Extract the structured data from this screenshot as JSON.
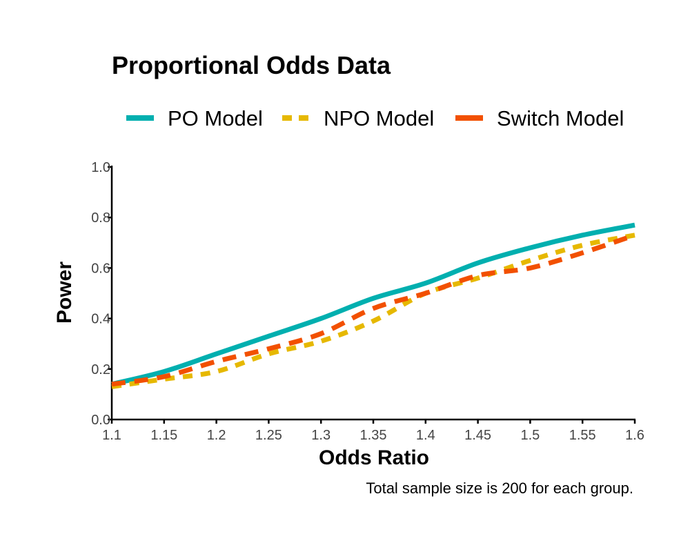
{
  "chart_data": {
    "type": "line",
    "title": "Proportional Odds Data",
    "xlabel": "Odds Ratio",
    "ylabel": "Power",
    "caption": "Total sample size is 200 for each group.",
    "xlim": [
      1.1,
      1.6
    ],
    "ylim": [
      0.0,
      1.0
    ],
    "x_ticks": [
      "1.1",
      "1.15",
      "1.2",
      "1.25",
      "1.3",
      "1.35",
      "1.4",
      "1.45",
      "1.5",
      "1.55",
      "1.6"
    ],
    "y_ticks": [
      "0.0",
      "0.2",
      "0.4",
      "0.6",
      "0.8",
      "1.0"
    ],
    "x": [
      1.1,
      1.15,
      1.2,
      1.25,
      1.3,
      1.35,
      1.4,
      1.45,
      1.5,
      1.55,
      1.6
    ],
    "legend_position": "top",
    "grid": false,
    "series": [
      {
        "name": "PO Model",
        "color": "#00AFAF",
        "dash": "solid",
        "values": [
          0.14,
          0.19,
          0.26,
          0.33,
          0.4,
          0.48,
          0.54,
          0.62,
          0.68,
          0.73,
          0.77
        ]
      },
      {
        "name": "NPO Model",
        "color": "#E6B800",
        "dash": "dotted",
        "values": [
          0.13,
          0.16,
          0.19,
          0.26,
          0.31,
          0.39,
          0.5,
          0.56,
          0.63,
          0.69,
          0.73
        ]
      },
      {
        "name": "Switch Model",
        "color": "#F25000",
        "dash": "dashed",
        "values": [
          0.14,
          0.17,
          0.23,
          0.28,
          0.34,
          0.44,
          0.5,
          0.57,
          0.6,
          0.66,
          0.73
        ]
      }
    ]
  }
}
